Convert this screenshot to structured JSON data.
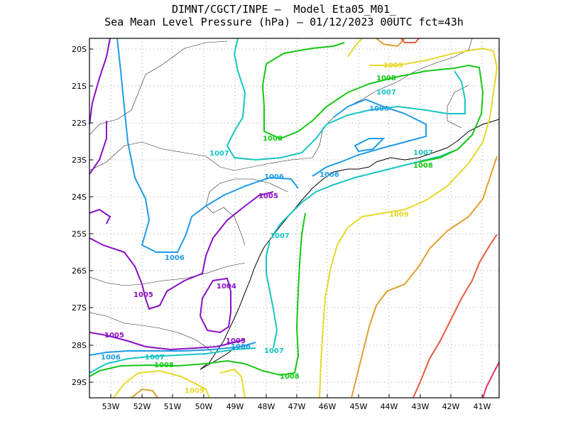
{
  "header": {
    "line1": "DIMNT/CGCT/INPE –  Model Eta05_M01_",
    "line2": "Sea Mean Level Pressure (hPa) – 01/12/2023 00UTC fct=43h"
  },
  "axes": {
    "lat_labels": [
      "20S",
      "21S",
      "22S",
      "23S",
      "24S",
      "25S",
      "26S",
      "27S",
      "28S",
      "29S"
    ],
    "lon_labels": [
      "53W",
      "52W",
      "51W",
      "50W",
      "49W",
      "48W",
      "47W",
      "46W",
      "45W",
      "44W",
      "43W",
      "42W",
      "41W"
    ],
    "gridlines": true
  },
  "colors": {
    "1004": "#8a0fc4",
    "1005": "#8a0fc4",
    "1006": "#1e9be6",
    "1007": "#18c4c4",
    "1008": "#14c814",
    "1009": "#e6d82a",
    "1010": "#e0a030",
    "1011": "#e85a40",
    "1012": "#e83070",
    "coast": "#000000",
    "grid": "#888888"
  },
  "contour_labels": [
    {
      "text": "1009"
    },
    {
      "text": "1008"
    },
    {
      "text": "1007"
    },
    {
      "text": "1006"
    },
    {
      "text": "1008"
    },
    {
      "text": "1007"
    },
    {
      "text": "1007"
    },
    {
      "text": "1006"
    },
    {
      "text": "1008"
    },
    {
      "text": "1006"
    },
    {
      "text": "1005"
    },
    {
      "text": "1007"
    },
    {
      "text": "1009"
    },
    {
      "text": "1006"
    },
    {
      "text": "1004"
    },
    {
      "text": "1005"
    },
    {
      "text": "1005"
    },
    {
      "text": "1005"
    },
    {
      "text": "1006"
    },
    {
      "text": "1006"
    },
    {
      "text": "1007"
    },
    {
      "text": "1007"
    },
    {
      "text": "1008"
    },
    {
      "text": "1008"
    },
    {
      "text": "1009"
    }
  ]
}
